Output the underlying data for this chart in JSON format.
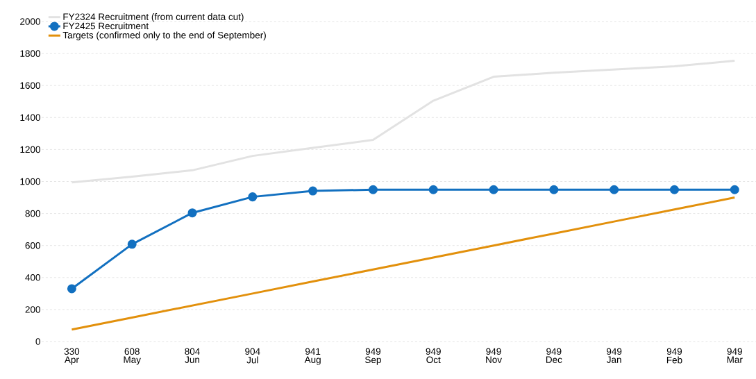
{
  "chart_data": {
    "type": "line",
    "categories": [
      "Apr",
      "May",
      "Jun",
      "Jul",
      "Aug",
      "Sep",
      "Oct",
      "Nov",
      "Dec",
      "Jan",
      "Feb",
      "Mar"
    ],
    "series": [
      {
        "name": "FY2324 Recruitment (from current data cut)",
        "color": "#e2e2e2",
        "marker": "none",
        "values": [
          995,
          1030,
          1070,
          1160,
          1210,
          1260,
          1505,
          1655,
          1680,
          1700,
          1720,
          1755
        ]
      },
      {
        "name": "FY2425 Recruitment",
        "color": "#1270c0",
        "marker": "circle",
        "values": [
          330,
          608,
          804,
          904,
          941,
          949,
          949,
          949,
          949,
          949,
          949,
          949
        ],
        "value_labels": [
          "330",
          "608",
          "804",
          "904",
          "941",
          "949",
          "949",
          "949",
          "949",
          "949",
          "949",
          "949"
        ]
      },
      {
        "name": "Targets (confirmed only to the end of September)",
        "color": "#e2900c",
        "marker": "none",
        "values": [
          75,
          150,
          225,
          300,
          375,
          450,
          525,
          600,
          675,
          750,
          825,
          900
        ]
      }
    ],
    "ylim": [
      0,
      2000
    ],
    "yticks": [
      0,
      200,
      400,
      600,
      800,
      1000,
      1200,
      1400,
      1600,
      1800,
      2000
    ],
    "grid": "y",
    "legend": "top left",
    "line_style": "solid"
  }
}
